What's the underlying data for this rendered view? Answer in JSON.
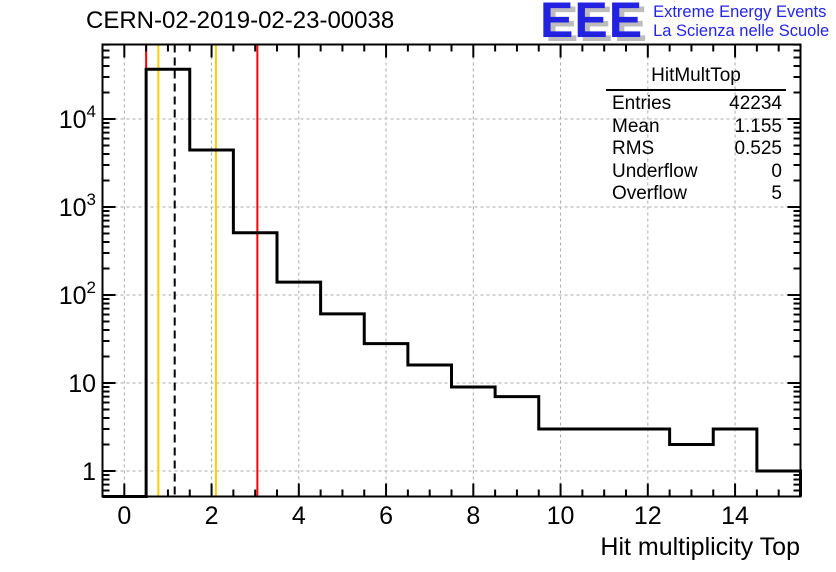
{
  "header": {
    "title": "CERN-02-2019-02-23-00038"
  },
  "logo": {
    "letters": "EEE",
    "line1": "Extreme Energy Events",
    "line2": "La Scienza nelle Scuole",
    "color": "#2222e0",
    "shadow_color": "#bcbcbc"
  },
  "stats_box": {
    "title": "HitMultTop",
    "rows": [
      {
        "label": "Entries",
        "value": "42234"
      },
      {
        "label": "Mean",
        "value": "1.155"
      },
      {
        "label": "RMS",
        "value": "0.525"
      },
      {
        "label": "Underflow",
        "value": "0"
      },
      {
        "label": "Overflow",
        "value": "5"
      }
    ]
  },
  "colors": {
    "histogram": "#000000",
    "grid": "#aaaaaa",
    "marker_red": "#ff0000",
    "marker_yellow": "#ffcc00",
    "frame": "#000000"
  },
  "chart_data": {
    "type": "bar",
    "subtype": "step-histogram-log-y",
    "title": "CERN-02-2019-02-23-00038",
    "xlabel": "Hit multiplicity Top",
    "ylabel": "",
    "x_range": [
      -0.5,
      15.5
    ],
    "y_scale": "log",
    "y_range": [
      0.513,
      70240
    ],
    "bin_width": 1,
    "bin_centers": [
      0,
      1,
      2,
      3,
      4,
      5,
      6,
      7,
      8,
      9,
      10,
      11,
      12,
      13,
      14,
      15
    ],
    "counts": [
      0,
      36750,
      4450,
      510,
      140,
      61,
      28,
      16,
      9,
      7,
      3,
      3,
      3,
      2,
      3,
      1
    ],
    "x_tick_labels": [
      {
        "value": 0,
        "label": "0"
      },
      {
        "value": 2,
        "label": "2"
      },
      {
        "value": 4,
        "label": "4"
      },
      {
        "value": 6,
        "label": "6"
      },
      {
        "value": 8,
        "label": "8"
      },
      {
        "value": 10,
        "label": "10"
      },
      {
        "value": 12,
        "label": "12"
      },
      {
        "value": 14,
        "label": "14"
      }
    ],
    "x_major_tick_step": 2,
    "x_minor_tick_step": 0.5,
    "y_tick_labels": [
      {
        "value": 1,
        "label": "1",
        "sup": ""
      },
      {
        "value": 10,
        "label": "10",
        "sup": ""
      },
      {
        "value": 100,
        "label": "10",
        "sup": "2"
      },
      {
        "value": 1000,
        "label": "10",
        "sup": "3"
      },
      {
        "value": 10000,
        "label": "10",
        "sup": "4"
      }
    ],
    "grid": {
      "x_values": [
        0,
        2,
        4,
        6,
        8,
        10,
        12,
        14
      ],
      "y_values": [
        1,
        10,
        100,
        1000,
        10000
      ],
      "style": "dashed"
    },
    "marker_lines": [
      {
        "x": 0.5,
        "color": "#ff0000",
        "style": "solid",
        "name": "red-line-low"
      },
      {
        "x": 0.78,
        "color": "#ffcc00",
        "style": "solid",
        "name": "yellow-line-low"
      },
      {
        "x": 1.155,
        "color": "#000000",
        "style": "dashed",
        "name": "mean-dashed-line"
      },
      {
        "x": 2.1,
        "color": "#ffcc00",
        "style": "solid",
        "name": "yellow-line-high"
      },
      {
        "x": 3.05,
        "color": "#ff0000",
        "style": "solid",
        "name": "red-line-high"
      }
    ],
    "legend_position": "none",
    "stats": {
      "name": "HitMultTop",
      "entries": 42234,
      "mean": 1.155,
      "rms": 0.525,
      "underflow": 0,
      "overflow": 5
    }
  }
}
